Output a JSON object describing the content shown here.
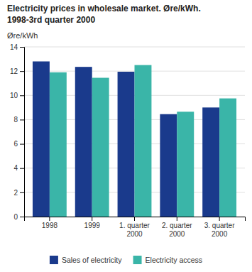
{
  "chart_data": {
    "type": "bar",
    "title": "Electricity prices in wholesale market. Øre/kWh.",
    "subtitle": "1998-3rd quarter 2000",
    "ylabel": "Øre/kWh",
    "categories": [
      "1998",
      "1999",
      "1. quarter\n2000",
      "2. quarter\n2000",
      "3. quarter\n2000"
    ],
    "series": [
      {
        "name": "Sales of electricity",
        "color": "#1a3a8c",
        "values": [
          12.8,
          12.35,
          11.95,
          8.45,
          9.0
        ]
      },
      {
        "name": "Electricity access",
        "color": "#3ab5a8",
        "values": [
          11.9,
          11.45,
          12.5,
          8.65,
          9.75
        ]
      }
    ],
    "ylim": [
      0,
      14
    ],
    "yticks": [
      0,
      2,
      4,
      6,
      8,
      10,
      12,
      14
    ],
    "grid": true,
    "legend": "bottom"
  }
}
